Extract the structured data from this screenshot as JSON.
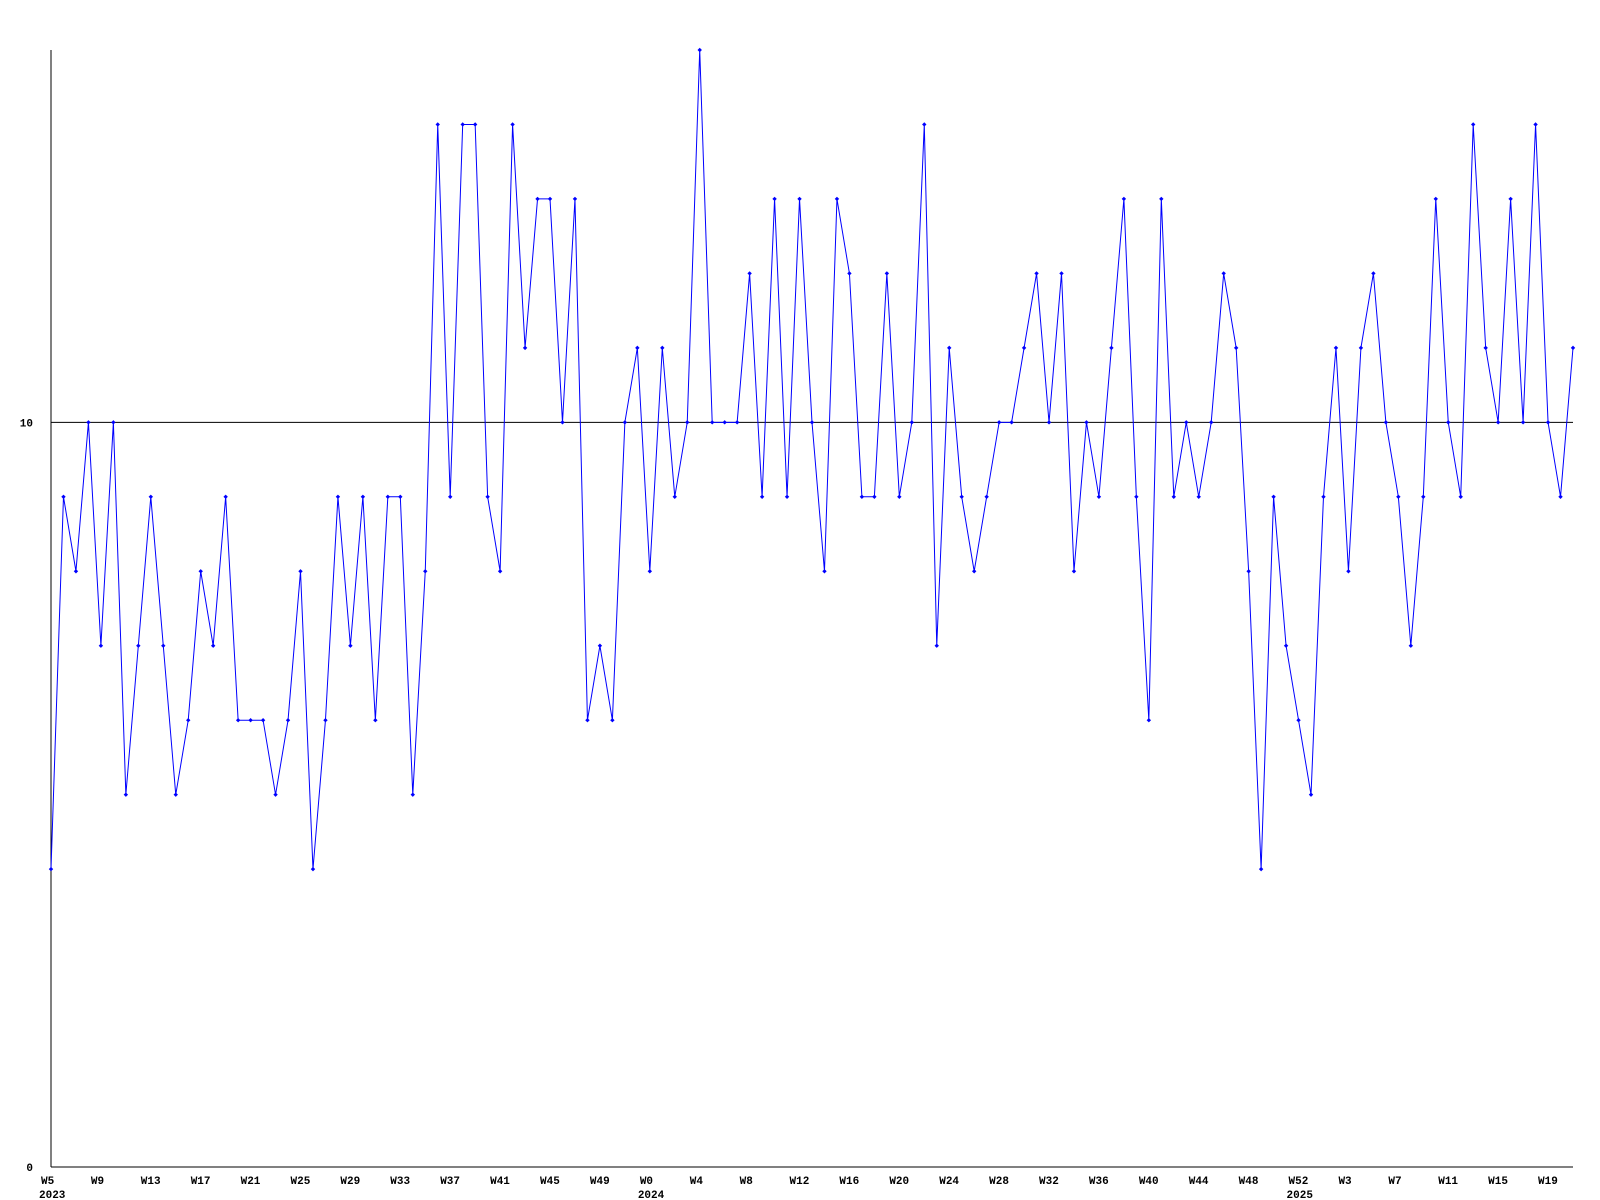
{
  "chart_data": {
    "type": "line",
    "categories": [
      "W5",
      null,
      null,
      null,
      "W9",
      null,
      null,
      null,
      "W13",
      null,
      null,
      null,
      "W17",
      null,
      null,
      null,
      "W21",
      null,
      null,
      null,
      "W25",
      null,
      null,
      null,
      "W29",
      null,
      null,
      null,
      "W33",
      null,
      null,
      null,
      "W37",
      null,
      null,
      null,
      "W41",
      null,
      null,
      null,
      "W45",
      null,
      null,
      null,
      "W49",
      null,
      null,
      null,
      "W0",
      null,
      null,
      null,
      "W4",
      null,
      null,
      null,
      "W8",
      null,
      null,
      null,
      "W12",
      null,
      null,
      null,
      "W16",
      null,
      null,
      null,
      "W20",
      null,
      null,
      null,
      "W24",
      null,
      null,
      null,
      "W28",
      null,
      null,
      null,
      "W32",
      null,
      null,
      null,
      "W36",
      null,
      null,
      null,
      "W40",
      null,
      null,
      null,
      "W44",
      null,
      null,
      null,
      "W48",
      null,
      null,
      null,
      "W52",
      null,
      null,
      null,
      "W3",
      null,
      null,
      null,
      "W7",
      null,
      null,
      null,
      "W11",
      null,
      null,
      null,
      "W15",
      null,
      null,
      null,
      "W19",
      null,
      null
    ],
    "category_years": [
      "2023",
      null,
      null,
      null,
      null,
      null,
      null,
      null,
      null,
      null,
      null,
      null,
      null,
      null,
      null,
      null,
      null,
      null,
      null,
      null,
      null,
      null,
      null,
      null,
      null,
      null,
      null,
      null,
      null,
      null,
      null,
      null,
      null,
      null,
      null,
      null,
      null,
      null,
      null,
      null,
      null,
      null,
      null,
      null,
      null,
      null,
      null,
      null,
      "2024",
      null,
      null,
      null,
      null,
      null,
      null,
      null,
      null,
      null,
      null,
      null,
      null,
      null,
      null,
      null,
      null,
      null,
      null,
      null,
      null,
      null,
      null,
      null,
      null,
      null,
      null,
      null,
      null,
      null,
      null,
      null,
      null,
      null,
      null,
      null,
      null,
      null,
      null,
      null,
      null,
      null,
      null,
      null,
      null,
      null,
      null,
      null,
      null,
      null,
      null,
      null,
      "2025",
      null,
      null,
      null,
      null,
      null,
      null,
      null,
      null,
      null,
      null,
      null,
      null,
      null,
      null,
      null,
      null,
      null,
      null,
      null,
      null,
      null,
      null
    ],
    "series": [
      {
        "color": "#0000ff",
        "values": [
          4,
          9,
          8,
          10,
          7,
          10,
          5,
          7,
          9,
          7,
          5,
          6,
          8,
          7,
          9,
          6,
          6,
          6,
          5,
          6,
          8,
          4,
          6,
          9,
          7,
          9,
          6,
          9,
          9,
          5,
          8,
          14,
          9,
          14,
          14,
          9,
          8,
          14,
          11,
          13,
          13,
          10,
          13,
          6,
          7,
          6,
          10,
          11,
          8,
          11,
          9,
          10,
          15,
          10,
          10,
          10,
          12,
          9,
          13,
          9,
          13,
          10,
          8,
          13,
          12,
          9,
          9,
          12,
          9,
          10,
          14,
          7,
          11,
          9,
          8,
          9,
          10,
          10,
          11,
          12,
          10,
          12,
          8,
          10,
          9,
          11,
          13,
          9,
          6,
          13,
          9,
          10,
          9,
          10,
          12,
          11,
          8,
          4,
          9,
          7,
          6,
          5,
          9,
          11,
          8,
          11,
          12,
          10,
          9,
          7,
          9,
          13,
          10,
          9,
          14,
          11,
          10,
          13,
          10,
          14,
          10,
          9,
          11
        ]
      }
    ],
    "ylim": [
      0,
      15
    ],
    "yticks": [
      0,
      10
    ],
    "grid": true
  }
}
